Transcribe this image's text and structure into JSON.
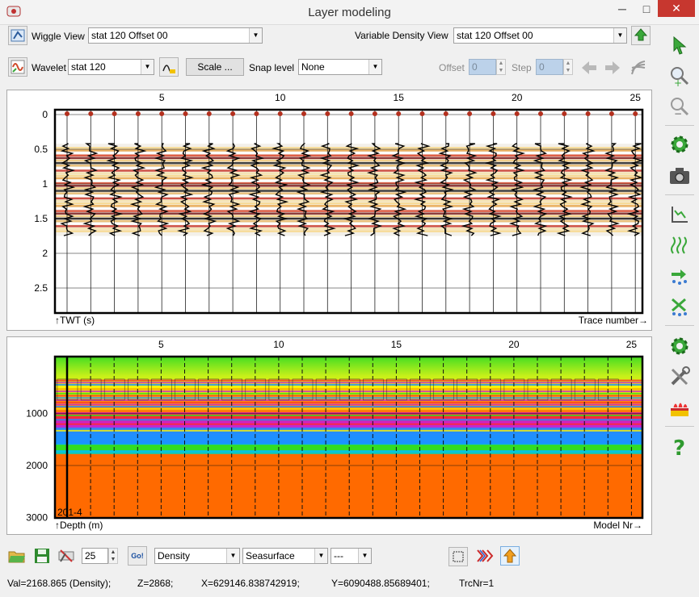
{
  "window": {
    "title": "Layer modeling",
    "minimize": "─",
    "maximize": "□",
    "close": "✕"
  },
  "toolbar1": {
    "wiggle_label": "Wiggle View",
    "wiggle_value": "stat 120 Offset 00",
    "vd_label": "Variable Density View",
    "vd_value": "stat 120 Offset 00"
  },
  "toolbar2": {
    "wavelet_label": "Wavelet",
    "wavelet_value": "stat 120",
    "scale_label": "Scale ...",
    "snap_label": "Snap level",
    "snap_value": "None",
    "offset_label": "Offset",
    "offset_value": "0",
    "step_label": "Step",
    "step_value": "0"
  },
  "top_panel": {
    "x_ticks": [
      "5",
      "10",
      "15",
      "20",
      "25"
    ],
    "y_ticks": [
      "0",
      "0.5",
      "1",
      "1.5",
      "2",
      "2.5"
    ],
    "y_label": "TWT (s)",
    "x_label": "Trace number"
  },
  "bottom_panel": {
    "x_ticks": [
      "5",
      "10",
      "15",
      "20",
      "25"
    ],
    "y_ticks": [
      "1000",
      "2000",
      "3000"
    ],
    "y_label": "Depth (m)",
    "x_label": "Model Nr",
    "tag": "201-4"
  },
  "bottom_toolbar": {
    "count_value": "25",
    "go_label": "Go!",
    "attribute_value": "Density",
    "reference_value": "Seasurface",
    "extra_value": "---"
  },
  "status": {
    "val": "Val=2168.865 (Density);",
    "z": "Z=2868;",
    "x": "X=629146.838742919;",
    "y": "Y=6090488.85689401;",
    "trc": "TrcNr=1"
  },
  "colors": {
    "close_red": "#c7372f",
    "density_orange": "#ff6a00",
    "density_green": "#33dd22",
    "density_blue": "#1e90ff"
  }
}
